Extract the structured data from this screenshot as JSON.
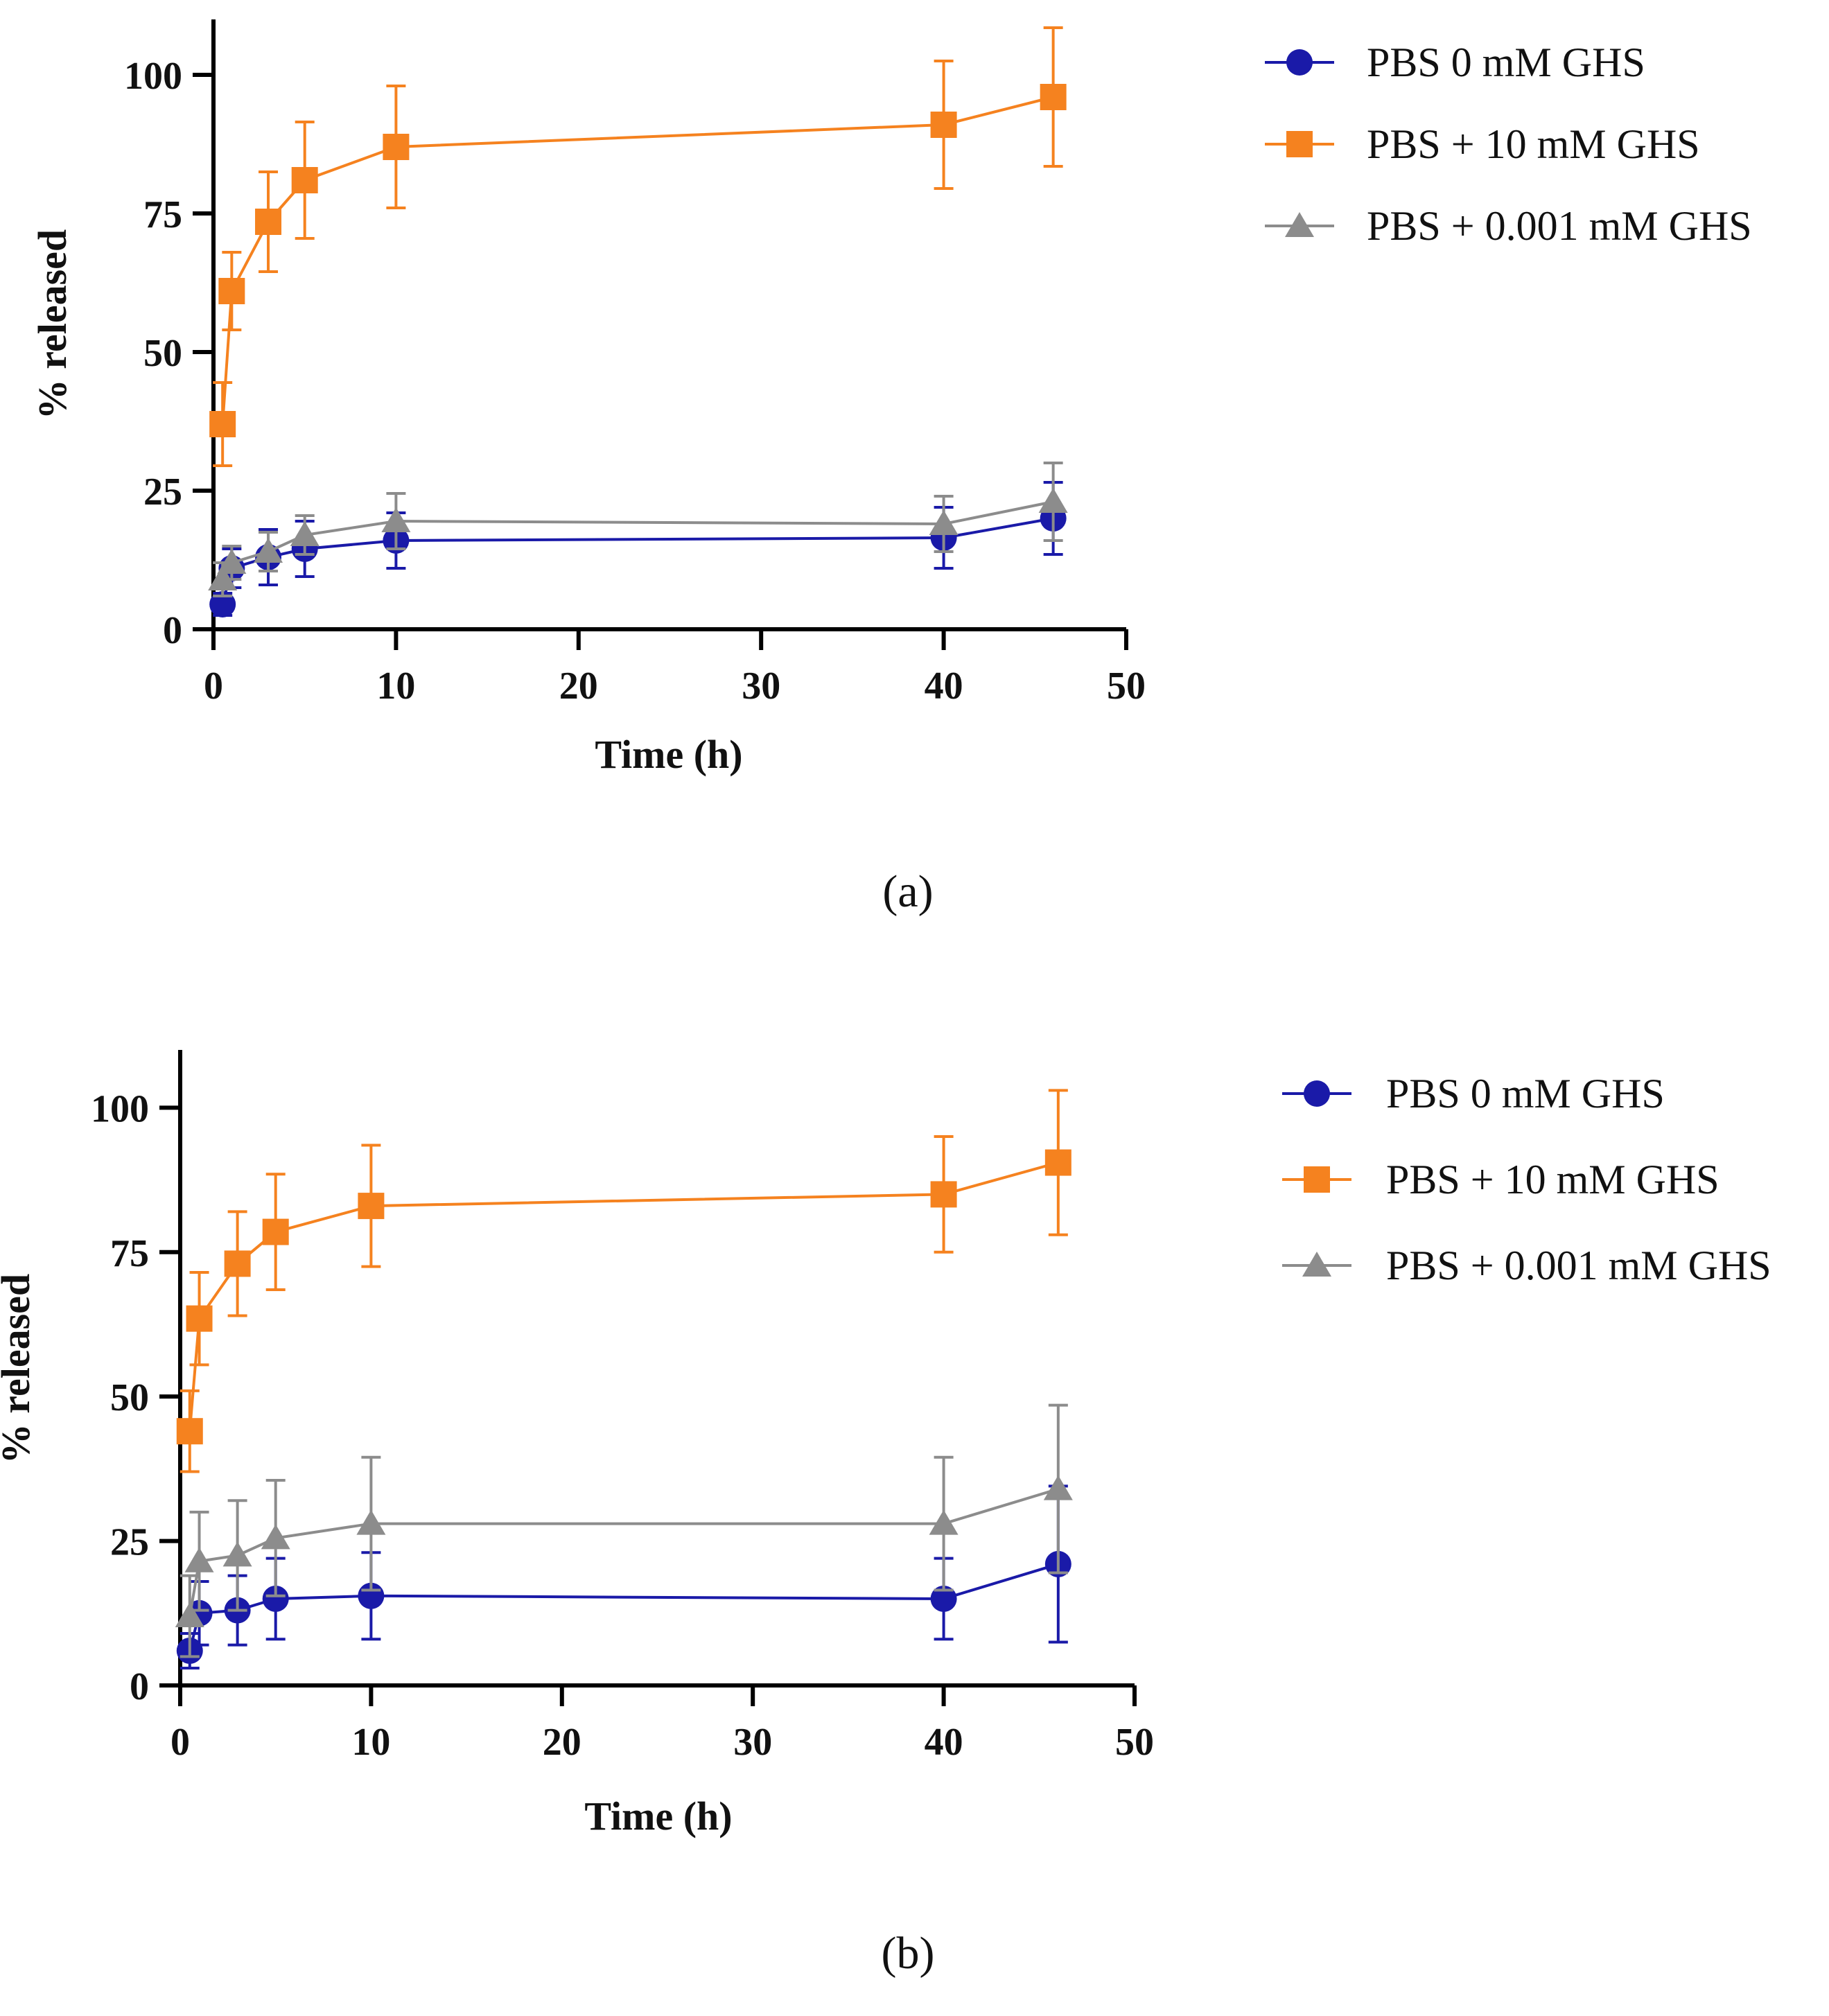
{
  "colors": {
    "blue": "#1a1aa8",
    "orange": "#f5821f",
    "gray": "#8c8c8c",
    "axis": "#000000"
  },
  "chart_data": [
    {
      "panel": "(a)",
      "panel_letter": "a",
      "type": "line",
      "xlabel": "Time (h)",
      "ylabel": "% released",
      "xlim": [
        0,
        50
      ],
      "ylim": [
        0,
        110
      ],
      "xticks": [
        0,
        10,
        20,
        30,
        40,
        50
      ],
      "yticks": [
        0,
        25,
        50,
        75,
        100
      ],
      "xtick_labels": [
        "0",
        "10",
        "20",
        "30",
        "40",
        "50"
      ],
      "ytick_labels": [
        "0",
        "25",
        "50",
        "75",
        "100"
      ],
      "legend_position": "top-right",
      "series": [
        {
          "name": "PBS 0 mM GHS",
          "color": "blue",
          "marker": "circle",
          "x": [
            0.5,
            1,
            3,
            5,
            10,
            40,
            46
          ],
          "y": [
            4.5,
            11,
            13,
            14.5,
            16,
            16.5,
            20
          ],
          "err": [
            2,
            3.5,
            5,
            5,
            5,
            5.5,
            6.5
          ]
        },
        {
          "name": "PBS + 10 mM GHS",
          "color": "orange",
          "marker": "square",
          "x": [
            0.5,
            1,
            3,
            5,
            10,
            40,
            46
          ],
          "y": [
            37,
            61,
            73.5,
            81,
            87,
            91,
            96
          ],
          "err": [
            7.5,
            7,
            9,
            10.5,
            11,
            11.5,
            12.5
          ]
        },
        {
          "name": "PBS + 0.001 mM GHS",
          "color": "gray",
          "marker": "triangle",
          "x": [
            0.5,
            1,
            3,
            5,
            10,
            40,
            46
          ],
          "y": [
            9,
            12,
            14,
            17,
            19.5,
            19,
            23
          ],
          "err": [
            3,
            3,
            3.5,
            3.5,
            5,
            5,
            7
          ]
        }
      ]
    },
    {
      "panel": "(b)",
      "panel_letter": "b",
      "type": "line",
      "xlabel": "Time (h)",
      "ylabel": "% released",
      "xlim": [
        0,
        50
      ],
      "ylim": [
        0,
        110
      ],
      "xticks": [
        0,
        10,
        20,
        30,
        40,
        50
      ],
      "yticks": [
        0,
        25,
        50,
        75,
        100
      ],
      "xtick_labels": [
        "0",
        "10",
        "20",
        "30",
        "40",
        "50"
      ],
      "ytick_labels": [
        "0",
        "25",
        "50",
        "75",
        "100"
      ],
      "legend_position": "top-right",
      "series": [
        {
          "name": "PBS 0 mM GHS",
          "color": "blue",
          "marker": "circle",
          "x": [
            0.5,
            1,
            3,
            5,
            10,
            40,
            46
          ],
          "y": [
            6,
            12.5,
            13,
            15,
            15.5,
            15,
            21
          ],
          "err": [
            3,
            5.5,
            6,
            7,
            7.5,
            7,
            13.5
          ]
        },
        {
          "name": "PBS + 10 mM GHS",
          "color": "orange",
          "marker": "square",
          "x": [
            0.5,
            1,
            3,
            5,
            10,
            40,
            46
          ],
          "y": [
            44,
            63.5,
            73,
            78.5,
            83,
            85,
            90.5
          ],
          "err": [
            7,
            8,
            9,
            10,
            10.5,
            10,
            12.5
          ]
        },
        {
          "name": "PBS + 0.001 mM GHS",
          "color": "gray",
          "marker": "triangle",
          "x": [
            0.5,
            1,
            3,
            5,
            10,
            40,
            46
          ],
          "y": [
            12,
            21.5,
            22.5,
            25.5,
            28,
            28,
            34
          ],
          "err": [
            7,
            8.5,
            9.5,
            10,
            11.5,
            11.5,
            14.5
          ]
        }
      ]
    }
  ]
}
